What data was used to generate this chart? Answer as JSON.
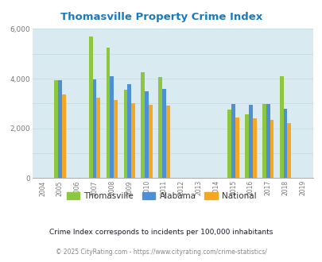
{
  "title": "Thomasville Property Crime Index",
  "title_color": "#1a7abf",
  "plot_bg_color": "#daeaf1",
  "years": [
    2004,
    2005,
    2006,
    2007,
    2008,
    2009,
    2010,
    2011,
    2012,
    2013,
    2014,
    2015,
    2016,
    2017,
    2018,
    2019
  ],
  "thomasville": [
    null,
    3950,
    null,
    5700,
    5250,
    3550,
    4250,
    4050,
    null,
    null,
    null,
    2750,
    2575,
    2980,
    4100,
    null
  ],
  "alabama": [
    null,
    3925,
    null,
    3975,
    4100,
    3775,
    3500,
    3575,
    null,
    null,
    null,
    2975,
    2950,
    2975,
    2775,
    null
  ],
  "national": [
    null,
    3375,
    null,
    3250,
    3150,
    3025,
    2950,
    2900,
    null,
    null,
    null,
    2450,
    2400,
    2350,
    2200,
    null
  ],
  "bar_colors": {
    "thomasville": "#8dc63f",
    "alabama": "#4d90d5",
    "national": "#f5a623"
  },
  "ylim": [
    0,
    6000
  ],
  "yticks": [
    0,
    2000,
    4000,
    6000
  ],
  "grid_color": "#c8dde6",
  "footnote1": "Crime Index corresponds to incidents per 100,000 inhabitants",
  "footnote2": "© 2025 CityRating.com - https://www.cityrating.com/crime-statistics/",
  "footnote1_color": "#1a1a2e",
  "footnote2_color": "#888888",
  "legend_labels": [
    "Thomasville",
    "Alabama",
    "National"
  ],
  "bar_width": 0.22
}
